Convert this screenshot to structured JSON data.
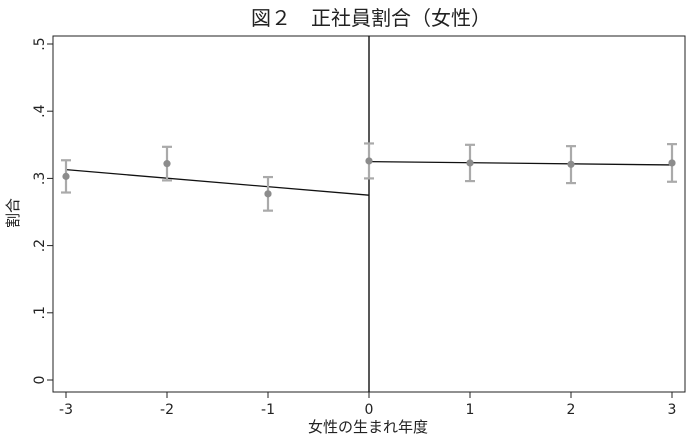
{
  "chart_data": {
    "type": "scatter",
    "title": "図２　正社員割合（女性）",
    "xlabel": "女性の生まれ年度",
    "ylabel": "割合",
    "xlim": [
      -3,
      3
    ],
    "ylim": [
      0,
      0.5
    ],
    "xticks": [
      "-3",
      "-2",
      "-1",
      "0",
      "1",
      "2",
      "3"
    ],
    "yticks": [
      "0",
      ".1",
      ".2",
      ".3",
      ".4",
      ".5"
    ],
    "cutoff": 0,
    "series": [
      {
        "x": [
          -3,
          -2,
          -1,
          0,
          1,
          2,
          3
        ],
        "values": [
          0.303,
          0.322,
          0.277,
          0.326,
          0.323,
          0.321,
          0.323
        ],
        "ci_low": [
          0.279,
          0.297,
          0.252,
          0.3,
          0.296,
          0.293,
          0.295
        ],
        "ci_high": [
          0.327,
          0.347,
          0.302,
          0.352,
          0.35,
          0.348,
          0.351
        ]
      }
    ],
    "fit_lines": [
      {
        "x": [
          -3,
          0
        ],
        "y": [
          0.313,
          0.275
        ]
      },
      {
        "x": [
          0,
          3
        ],
        "y": [
          0.325,
          0.32
        ]
      }
    ],
    "grid": false,
    "legend": "none",
    "colors": {
      "points": "#8c8c8c",
      "errorbars": "#aaaaaa",
      "lines": "#111111",
      "axis": "#222222"
    }
  }
}
